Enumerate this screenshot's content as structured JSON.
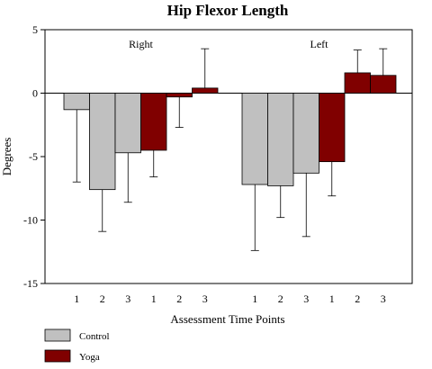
{
  "chart_data": {
    "type": "bar",
    "title": "Hip Flexor Length",
    "xlabel": "Assessment Time Points",
    "ylabel": "Degrees",
    "ylim": [
      -15,
      5
    ],
    "yticks": [
      5,
      0,
      -5,
      -10,
      -15
    ],
    "groups": [
      {
        "label": "Right",
        "bars": [
          {
            "category": "1",
            "series": "Control",
            "value": -1.3,
            "error_end": -7.0
          },
          {
            "category": "2",
            "series": "Control",
            "value": -7.6,
            "error_end": -10.9
          },
          {
            "category": "3",
            "series": "Control",
            "value": -4.7,
            "error_end": -8.6
          },
          {
            "category": "1",
            "series": "Yoga",
            "value": -4.5,
            "error_end": -6.6
          },
          {
            "category": "2",
            "series": "Yoga",
            "value": -0.3,
            "error_end": -2.7
          },
          {
            "category": "3",
            "series": "Yoga",
            "value": 0.4,
            "error_end": 3.5
          }
        ]
      },
      {
        "label": "Left",
        "bars": [
          {
            "category": "1",
            "series": "Control",
            "value": -7.2,
            "error_end": -12.4
          },
          {
            "category": "2",
            "series": "Control",
            "value": -7.3,
            "error_end": -9.8
          },
          {
            "category": "3",
            "series": "Control",
            "value": -6.3,
            "error_end": -11.3
          },
          {
            "category": "1",
            "series": "Yoga",
            "value": -5.4,
            "error_end": -8.1
          },
          {
            "category": "2",
            "series": "Yoga",
            "value": 1.6,
            "error_end": 3.4
          },
          {
            "category": "3",
            "series": "Yoga",
            "value": 1.4,
            "error_end": 3.5
          }
        ]
      }
    ],
    "legend": {
      "position": "bottom-left",
      "entries": [
        {
          "name": "Control",
          "color": "#c0c0c0"
        },
        {
          "name": "Yoga",
          "color": "#800000"
        }
      ]
    }
  }
}
